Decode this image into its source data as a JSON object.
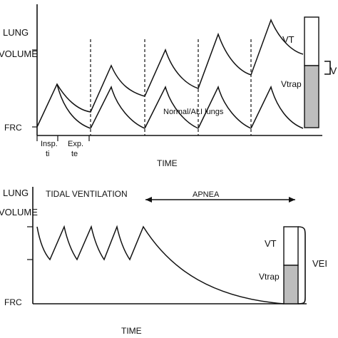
{
  "top_panel": {
    "y_label_line1": "LUNG",
    "y_label_line2": "VOLUME",
    "frc_label": "FRC",
    "x_label": "TIME",
    "insp_label_line1": "Insp.",
    "insp_label_line2": "ti",
    "exp_label_line1": "Exp.",
    "exp_label_line2": "te",
    "vt_label": "VT",
    "vtrap_label": "Vtrap",
    "curve_annotation": "Normal/ALI lungs",
    "bracket_label": "V"
  },
  "bottom_panel": {
    "y_label_line1": "LUNG",
    "y_label_line2": "VOLUME",
    "frc_label": "FRC",
    "x_label": "TIME",
    "phase_ventilation": "TIDAL VENTILATION",
    "phase_apnea": "APNEA",
    "vt_label": "VT",
    "vtrap_label": "Vtrap",
    "vei_label": "VEI"
  },
  "colors": {
    "ink": "#111111",
    "shaded_bar": "#bdbdbd"
  }
}
